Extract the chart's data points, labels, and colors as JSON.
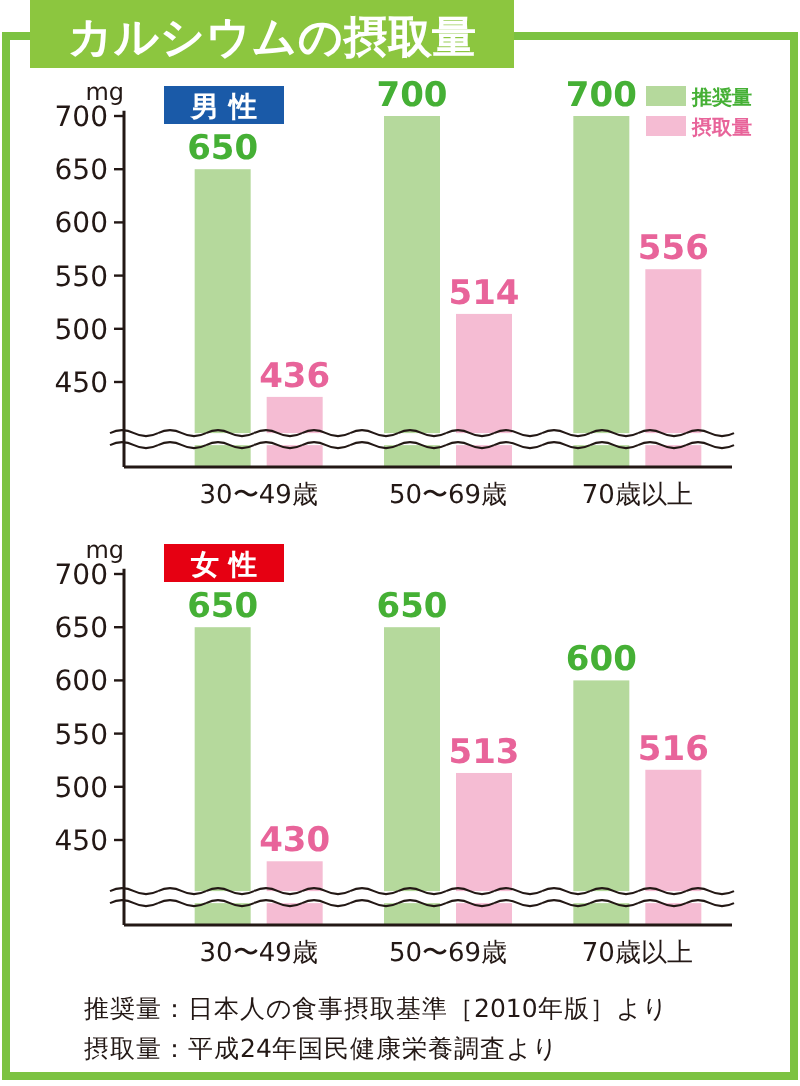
{
  "chart_data": [
    {
      "type": "bar",
      "title": "カルシウムの摂取量",
      "subtitle": "男 性",
      "ylabel": "mg",
      "categories": [
        "30〜49歳",
        "50〜69歳",
        "70歳以上"
      ],
      "series": [
        {
          "name": "推奨量",
          "color": "#b5d99c",
          "values": [
            650,
            700,
            700
          ]
        },
        {
          "name": "摂取量",
          "color": "#f5bcd3",
          "values": [
            436,
            514,
            556
          ]
        }
      ],
      "ylim": [
        370,
        705
      ],
      "yticks": [
        450,
        500,
        550,
        600,
        650,
        700
      ],
      "data_labels": true,
      "legend": "top right"
    },
    {
      "type": "bar",
      "subtitle": "女 性",
      "ylabel": "mg",
      "categories": [
        "30〜49歳",
        "50〜69歳",
        "70歳以上"
      ],
      "series": [
        {
          "color": "#b5d99c",
          "values": [
            650,
            650,
            600
          ]
        },
        {
          "color": "#f5bcd3",
          "values": [
            430,
            513,
            516
          ]
        }
      ],
      "ylim": [
        370,
        705
      ],
      "yticks": [
        450,
        500,
        550,
        600,
        650,
        700
      ],
      "data_labels": true,
      "annotations": [
        "推奨量：日本人の食事摂取基準［2010年版］より",
        "摂取量：平成24年国民健康栄養調査より"
      ]
    }
  ]
}
